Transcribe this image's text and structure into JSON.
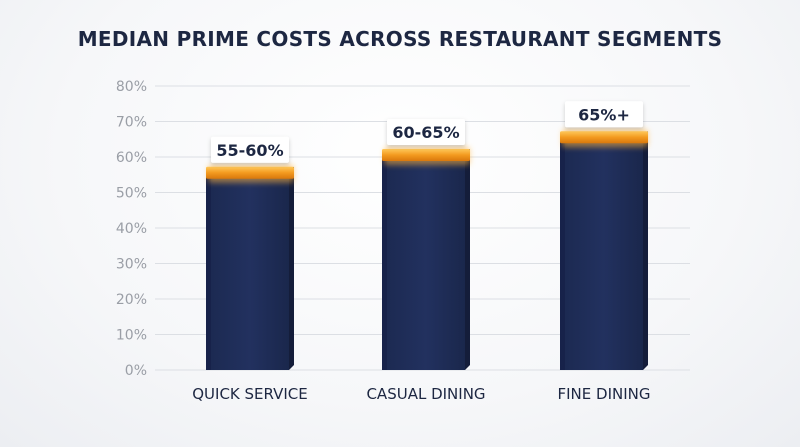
{
  "chart_data": {
    "type": "bar",
    "title": "MEDIAN PRIME COSTS ACROSS RESTAURANT SEGMENTS",
    "xlabel": "",
    "ylabel": "",
    "categories": [
      "QUICK SERVICE",
      "CASUAL DINING",
      "FINE DINING"
    ],
    "values": [
      57.5,
      62.5,
      65
    ],
    "ranges": [
      [
        55,
        60
      ],
      [
        60,
        65
      ],
      [
        65,
        null
      ]
    ],
    "data_labels": [
      "55-60%",
      "60-65%",
      "65%+"
    ],
    "ylim": [
      0,
      80
    ],
    "yticks": [
      0,
      10,
      20,
      30,
      40,
      50,
      60,
      70,
      80
    ],
    "ytick_labels": [
      "0%",
      "10%",
      "20%",
      "30%",
      "40%",
      "50%",
      "60%",
      "70%",
      "80%"
    ],
    "grid": true,
    "legend": "none",
    "colors": {
      "bar": "#1f2d57",
      "bar_side": "#141d3a",
      "range_band": "#f39a1f",
      "title": "#1d2742",
      "grid": "#dcdfe4",
      "tick": "#9a9ea6"
    }
  }
}
